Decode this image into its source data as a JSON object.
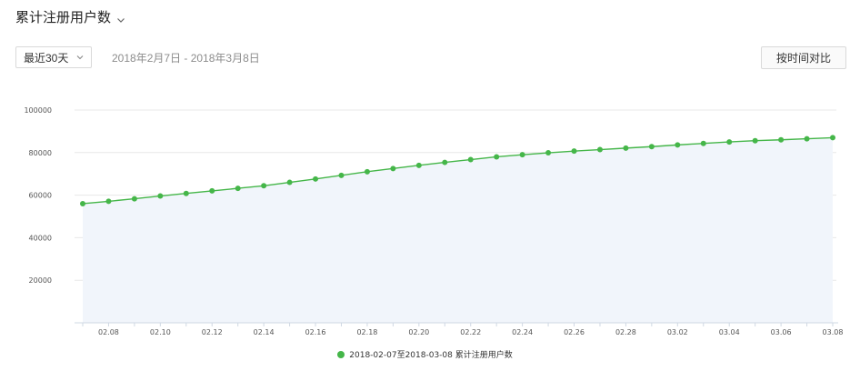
{
  "header": {
    "title": "累计注册用户数",
    "chevron_icon": "chevron-down-icon"
  },
  "controls": {
    "range_selected": "最近30天",
    "date_range": "2018年2月7日 - 2018年3月8日",
    "compare_label": "按时间对比"
  },
  "colors": {
    "line": "#45b649",
    "area": "#f1f5fb",
    "grid": "#e8e8e8",
    "axis": "#cfd8e3"
  },
  "chart_data": {
    "type": "area",
    "title": "",
    "xlabel": "",
    "ylabel": "",
    "ylim": [
      0,
      100000
    ],
    "yticks": [
      20000,
      40000,
      60000,
      80000,
      100000
    ],
    "grid": true,
    "legend_position": "bottom",
    "x": [
      "02.07",
      "02.08",
      "02.09",
      "02.10",
      "02.11",
      "02.12",
      "02.13",
      "02.14",
      "02.15",
      "02.16",
      "02.17",
      "02.18",
      "02.19",
      "02.20",
      "02.21",
      "02.22",
      "02.23",
      "02.24",
      "02.25",
      "02.26",
      "02.27",
      "02.28",
      "03.01",
      "03.02",
      "03.03",
      "03.04",
      "03.05",
      "03.06",
      "03.07",
      "03.08"
    ],
    "xtick_labels": [
      "02.08",
      "02.10",
      "02.12",
      "02.14",
      "02.16",
      "02.18",
      "02.20",
      "02.22",
      "02.24",
      "02.26",
      "02.28",
      "03.02",
      "03.04",
      "03.06",
      "03.08"
    ],
    "series": [
      {
        "name": "2018-02-07至2018-03-08 累计注册用户数",
        "values": [
          56000,
          57100,
          58300,
          59600,
          60800,
          62000,
          63200,
          64400,
          66000,
          67600,
          69300,
          71000,
          72500,
          74000,
          75400,
          76700,
          78000,
          79000,
          79900,
          80700,
          81400,
          82100,
          82800,
          83600,
          84300,
          85000,
          85600,
          86000,
          86500,
          87000
        ]
      }
    ]
  }
}
